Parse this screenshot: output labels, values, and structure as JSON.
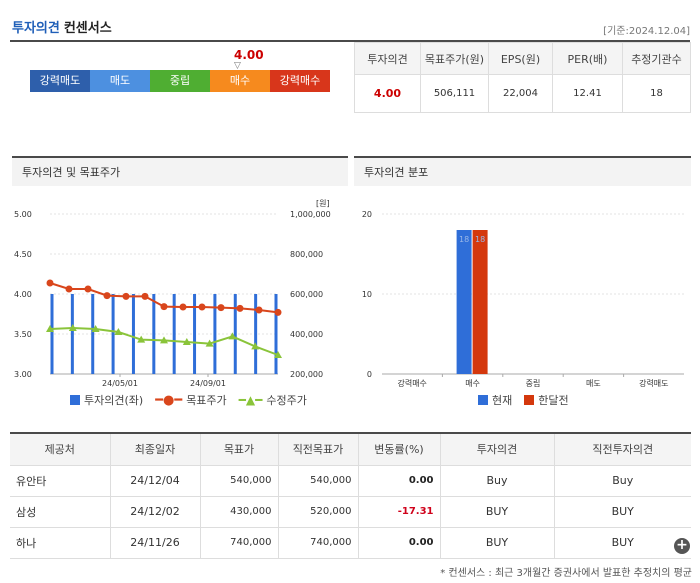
{
  "header": {
    "title_blue": "투자의견",
    "title_rest": "컨센서스",
    "date": "[기준:2024.12.04]"
  },
  "scale": {
    "value": "4.00",
    "marker": "▽",
    "items": [
      {
        "label": "강력매도",
        "color": "#2e5fab"
      },
      {
        "label": "매도",
        "color": "#4d90e0"
      },
      {
        "label": "중립",
        "color": "#4fae32"
      },
      {
        "label": "매수",
        "color": "#f68a1e"
      },
      {
        "label": "강력매수",
        "color": "#d8361b"
      }
    ]
  },
  "summary": {
    "headers": [
      "투자의견",
      "목표주가(원)",
      "EPS(원)",
      "PER(배)",
      "추정기관수"
    ],
    "values": [
      "4.00",
      "506,111",
      "22,004",
      "12.41",
      "18"
    ]
  },
  "panel_left": {
    "title": "투자의견 및 목표주가"
  },
  "panel_right": {
    "title": "투자의견 분포"
  },
  "chart_data": [
    {
      "type": "line",
      "x_ticks": [
        "24/05/01",
        "24/09/01"
      ],
      "y_left_ticks": [
        "5.00",
        "4.50",
        "4.00",
        "3.50",
        "3.00"
      ],
      "y_right_ticks": [
        "1,000,000",
        "800,000",
        "600,000",
        "400,000",
        "200,000"
      ],
      "y_right_unit": "[원]",
      "ylim_left": [
        3.0,
        5.0
      ],
      "ylim_right": [
        200000,
        1000000
      ],
      "series": [
        {
          "name": "투자의견(좌)",
          "kind": "bar",
          "color": "#2f6ed8",
          "values": [
            4.0,
            4.0,
            4.0,
            4.0,
            4.0,
            4.0,
            4.0,
            4.0,
            4.0,
            4.0,
            4.0,
            4.0
          ]
        },
        {
          "name": "목표주가",
          "kind": "line",
          "color": "#d9461c",
          "values": [
            655000,
            625000,
            625000,
            592000,
            588000,
            588000,
            537000,
            535000,
            535000,
            532000,
            528000,
            520000,
            508000
          ]
        },
        {
          "name": "수정주가",
          "kind": "line",
          "color": "#8ac43a",
          "values": [
            425000,
            430000,
            425000,
            410000,
            372000,
            368000,
            360000,
            352000,
            388000,
            338000,
            295000
          ]
        }
      ]
    },
    {
      "type": "bar",
      "categories": [
        "강력매수",
        "매수",
        "중립",
        "매도",
        "강력매도"
      ],
      "ylim": [
        0,
        20
      ],
      "y_ticks": [
        "20",
        "10",
        "0"
      ],
      "series": [
        {
          "name": "현재",
          "color": "#2f6ed8",
          "values": [
            0,
            18,
            0,
            0,
            0
          ]
        },
        {
          "name": "한달전",
          "color": "#d4380d",
          "values": [
            0,
            18,
            0,
            0,
            0
          ]
        }
      ],
      "data_labels": [
        "18",
        "18"
      ]
    }
  ],
  "table": {
    "headers": [
      "제공처",
      "최종일자",
      "목표가",
      "직전목표가",
      "변동률(%)",
      "투자의견",
      "직전투자의견"
    ],
    "rows": [
      {
        "provider": "유안타",
        "date": "24/12/04",
        "target": "540,000",
        "prev_target": "540,000",
        "change": "0.00",
        "change_color": "#222",
        "opinion": "Buy",
        "prev_opinion": "Buy"
      },
      {
        "provider": "삼성",
        "date": "24/12/02",
        "target": "430,000",
        "prev_target": "520,000",
        "change": "-17.31",
        "change_color": "#d0021b",
        "opinion": "BUY",
        "prev_opinion": "BUY"
      },
      {
        "provider": "하나",
        "date": "24/11/26",
        "target": "740,000",
        "prev_target": "740,000",
        "change": "0.00",
        "change_color": "#222",
        "opinion": "BUY",
        "prev_opinion": "BUY"
      }
    ]
  },
  "footnote": "* 컨센서스 : 최근 3개월간 증권사에서 발표한 추정치의 평균",
  "plus_symbol": "+"
}
